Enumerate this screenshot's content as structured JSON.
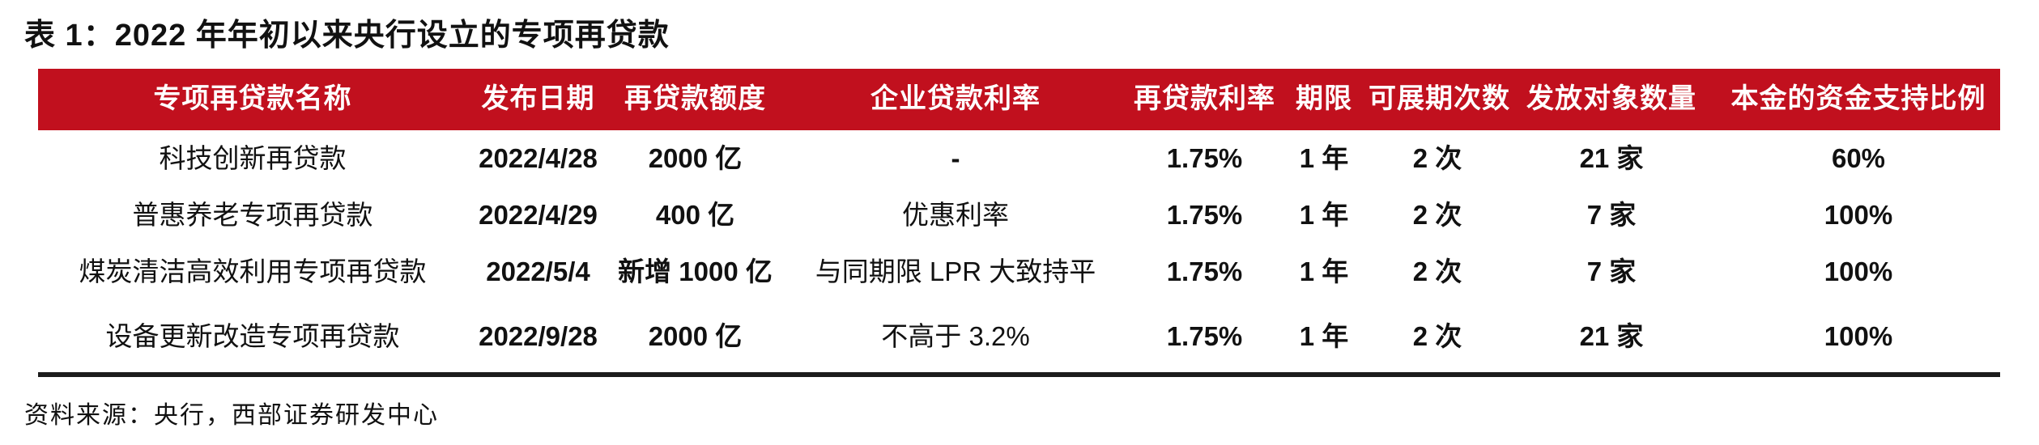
{
  "title": "表 1：2022 年年初以来央行设立的专项再贷款",
  "source_note": "资料来源：央行，西部证券研发中心",
  "colors": {
    "header_bg": "#C1101E",
    "header_text": "#FFFFFF",
    "body_text": "#111111",
    "bottom_rule": "#1C1C1C"
  },
  "table": {
    "headers": [
      "专项再贷款名称",
      "发布日期",
      "再贷款额度",
      "企业贷款利率",
      "再贷款利率",
      "期限",
      "可展期次数",
      "发放对象数量",
      "本金的资金支持比例"
    ],
    "rows": [
      [
        "科技创新再贷款",
        "2022/4/28",
        "2000 亿",
        "-",
        "1.75%",
        "1 年",
        "2 次",
        "21 家",
        "60%"
      ],
      [
        "普惠养老专项再贷款",
        "2022/4/29",
        "400 亿",
        "优惠利率",
        "1.75%",
        "1 年",
        "2 次",
        "7 家",
        "100%"
      ],
      [
        "煤炭清洁高效利用专项再贷款",
        "2022/5/4",
        "新增 1000 亿",
        "与同期限 LPR 大致持平",
        "1.75%",
        "1 年",
        "2 次",
        "7 家",
        "100%"
      ],
      [
        "设备更新改造专项再贷款",
        "2022/9/28",
        "2000 亿",
        "不高于 3.2%",
        "1.75%",
        "1 年",
        "2 次",
        "21 家",
        "100%"
      ]
    ]
  }
}
